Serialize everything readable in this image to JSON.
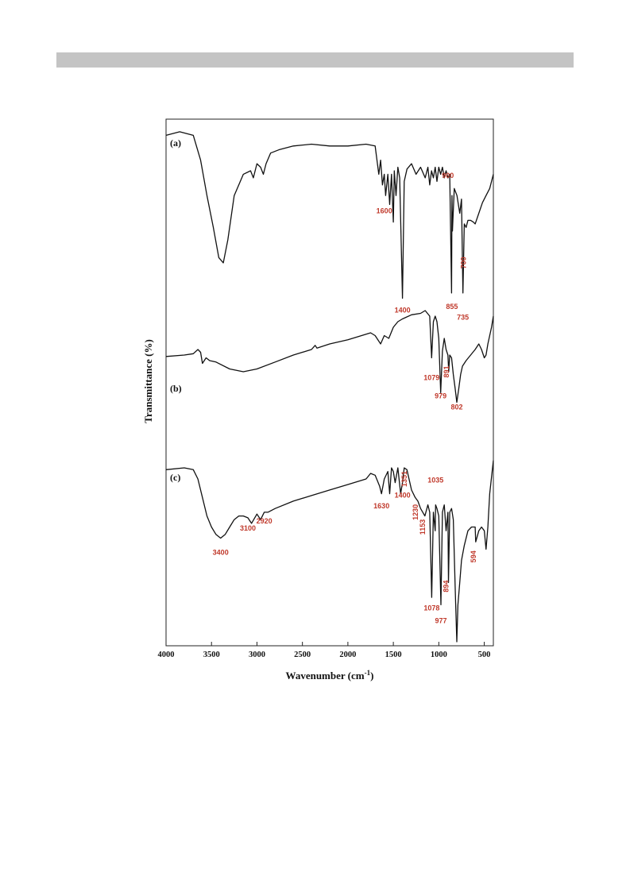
{
  "chart_data": {
    "type": "line",
    "title": "",
    "xlabel": "Wavenumber (cm",
    "xlabel_superscript": "-1",
    "xlabel_close": ")",
    "ylabel": "Transmittance (%)",
    "xlim": [
      4000,
      400
    ],
    "xticks": [
      4000,
      3500,
      3000,
      2500,
      2000,
      1500,
      1000,
      500
    ],
    "grid": false,
    "legend": "none",
    "series": [
      {
        "name": "(a)",
        "x": [
          4000,
          3850,
          3700,
          3620,
          3550,
          3480,
          3420,
          3370,
          3320,
          3250,
          3150,
          3070,
          3040,
          3000,
          2960,
          2930,
          2900,
          2850,
          2750,
          2600,
          2400,
          2200,
          2000,
          1800,
          1700,
          1660,
          1640,
          1620,
          1600,
          1585,
          1560,
          1540,
          1520,
          1500,
          1490,
          1470,
          1450,
          1430,
          1400,
          1380,
          1350,
          1300,
          1250,
          1200,
          1150,
          1120,
          1100,
          1080,
          1060,
          1040,
          1020,
          1000,
          980,
          960,
          940,
          920,
          900,
          880,
          860,
          855,
          850,
          830,
          800,
          770,
          750,
          735,
          720,
          700,
          680,
          650,
          620,
          600,
          560,
          520,
          480,
          440,
          400
        ],
        "y": [
          94,
          96,
          94,
          80,
          60,
          42,
          25,
          22,
          35,
          60,
          72,
          74,
          70,
          78,
          76,
          72,
          78,
          84,
          86,
          88,
          89,
          88,
          88,
          89,
          88,
          72,
          80,
          66,
          72,
          60,
          72,
          55,
          72,
          45,
          74,
          60,
          76,
          70,
          2,
          68,
          75,
          78,
          72,
          76,
          70,
          76,
          66,
          74,
          70,
          76,
          68,
          76,
          72,
          76,
          70,
          74,
          70,
          72,
          5,
          60,
          40,
          64,
          60,
          50,
          58,
          5,
          44,
          42,
          46,
          46,
          45,
          44,
          50,
          56,
          60,
          64,
          72
        ],
        "labels": [
          {
            "text": "1600",
            "x": 1600,
            "y": 50,
            "rotate": 0
          },
          {
            "text": "1400",
            "x": 1400,
            "y": -6,
            "rotate": 0
          },
          {
            "text": "900",
            "x": 900,
            "y": 70,
            "rotate": 0
          },
          {
            "text": "855",
            "x": 855,
            "y": -4,
            "rotate": 0
          },
          {
            "text": "735",
            "x": 735,
            "y": -10,
            "rotate": 0
          },
          {
            "text": "700",
            "x": 700,
            "y": 22,
            "rotate": -90
          }
        ]
      },
      {
        "name": "(b)",
        "x": [
          4000,
          3800,
          3700,
          3650,
          3620,
          3600,
          3560,
          3520,
          3450,
          3300,
          3150,
          3000,
          2800,
          2600,
          2400,
          2360,
          2340,
          2200,
          2000,
          1850,
          1750,
          1700,
          1660,
          1640,
          1600,
          1550,
          1500,
          1450,
          1400,
          1300,
          1200,
          1150,
          1100,
          1079,
          1060,
          1040,
          1020,
          1000,
          979,
          960,
          940,
          920,
          900,
          891,
          880,
          860,
          840,
          820,
          802,
          780,
          760,
          740,
          700,
          650,
          600,
          560,
          530,
          500,
          480,
          460,
          440,
          420,
          400
        ],
        "y": [
          71,
          72,
          73,
          76,
          74,
          66,
          70,
          68,
          67,
          62,
          60,
          62,
          67,
          72,
          76,
          79,
          77,
          80,
          83,
          86,
          88,
          86,
          82,
          80,
          86,
          84,
          92,
          96,
          98,
          101,
          102,
          104,
          100,
          70,
          96,
          100,
          96,
          84,
          45,
          75,
          84,
          76,
          72,
          60,
          72,
          70,
          58,
          48,
          38,
          48,
          58,
          64,
          68,
          72,
          76,
          80,
          76,
          70,
          72,
          80,
          86,
          92,
          100
        ],
        "labels": [
          {
            "text": "1079",
            "x": 1079,
            "y": 54,
            "rotate": 0
          },
          {
            "text": "979",
            "x": 979,
            "y": 41,
            "rotate": 0
          },
          {
            "text": "891",
            "x": 891,
            "y": 60,
            "rotate": -90
          },
          {
            "text": "802",
            "x": 802,
            "y": 33,
            "rotate": 0
          }
        ]
      },
      {
        "name": "(c)",
        "x": [
          4000,
          3800,
          3700,
          3650,
          3600,
          3550,
          3500,
          3450,
          3400,
          3350,
          3300,
          3250,
          3200,
          3150,
          3100,
          3060,
          3000,
          2960,
          2920,
          2880,
          2800,
          2600,
          2400,
          2200,
          2000,
          1800,
          1750,
          1700,
          1650,
          1630,
          1600,
          1560,
          1540,
          1520,
          1500,
          1480,
          1450,
          1420,
          1400,
          1380,
          1351,
          1300,
          1260,
          1230,
          1200,
          1153,
          1120,
          1100,
          1078,
          1060,
          1040,
          1035,
          1020,
          1000,
          977,
          960,
          940,
          920,
          900,
          894,
          880,
          860,
          840,
          820,
          802,
          790,
          770,
          750,
          720,
          680,
          640,
          600,
          594,
          560,
          530,
          500,
          480,
          460,
          440,
          400
        ],
        "y": [
          93,
          94,
          93,
          88,
          78,
          68,
          62,
          58,
          56,
          58,
          62,
          66,
          68,
          68,
          67,
          64,
          69,
          66,
          70,
          70,
          72,
          76,
          79,
          82,
          85,
          88,
          91,
          90,
          84,
          80,
          88,
          92,
          80,
          94,
          92,
          86,
          94,
          80,
          86,
          94,
          93,
          82,
          78,
          76,
          72,
          68,
          74,
          70,
          24,
          70,
          60,
          74,
          72,
          68,
          20,
          70,
          74,
          60,
          70,
          32,
          70,
          72,
          66,
          30,
          0,
          20,
          32,
          44,
          52,
          60,
          62,
          62,
          54,
          60,
          62,
          60,
          50,
          62,
          80,
          98
        ],
        "labels": [
          {
            "text": "3400",
            "x": 3400,
            "y": 47,
            "rotate": 0
          },
          {
            "text": "3100",
            "x": 3100,
            "y": 60,
            "rotate": 0
          },
          {
            "text": "2920",
            "x": 2920,
            "y": 64,
            "rotate": 0
          },
          {
            "text": "1630",
            "x": 1630,
            "y": 72,
            "rotate": 0
          },
          {
            "text": "1400",
            "x": 1400,
            "y": 78,
            "rotate": 0
          },
          {
            "text": "1351",
            "x": 1351,
            "y": 88,
            "rotate": -90
          },
          {
            "text": "1230",
            "x": 1230,
            "y": 70,
            "rotate": -90
          },
          {
            "text": "1153",
            "x": 1153,
            "y": 62,
            "rotate": -90
          },
          {
            "text": "1035",
            "x": 1035,
            "y": 86,
            "rotate": 0
          },
          {
            "text": "1078",
            "x": 1078,
            "y": 17,
            "rotate": 0
          },
          {
            "text": "977",
            "x": 977,
            "y": 10,
            "rotate": 0
          },
          {
            "text": "894",
            "x": 894,
            "y": 30,
            "rotate": -90
          },
          {
            "text": "594",
            "x": 594,
            "y": 46,
            "rotate": -90
          }
        ]
      }
    ]
  }
}
